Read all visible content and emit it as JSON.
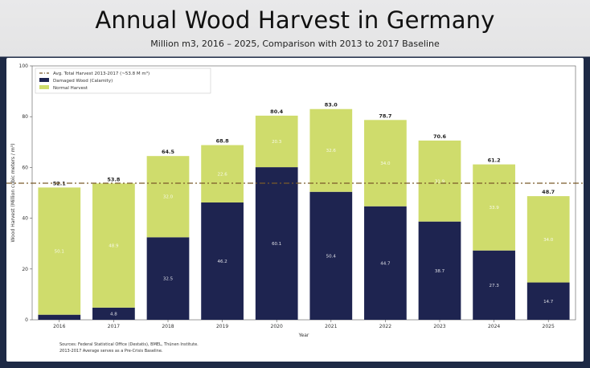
{
  "title": "Annual Wood Harvest in Germany",
  "subtitle": "Million m3, 2016 – 2025, Comparison with 2013 to 2017 Baseline",
  "colors": {
    "damaged": "#1e2450",
    "normal": "#cfdc6c",
    "baseline": "#7a5a2a"
  },
  "chart_data": {
    "type": "bar",
    "stacked": true,
    "categories": [
      "2016",
      "2017",
      "2018",
      "2019",
      "2020",
      "2021",
      "2022",
      "2023",
      "2024",
      "2025"
    ],
    "series": [
      {
        "name": "Damaged Wood (Calamity)",
        "values": [
          2.0,
          4.8,
          32.5,
          46.2,
          60.1,
          50.4,
          44.7,
          38.7,
          27.3,
          14.7
        ]
      },
      {
        "name": "Normal Harvest",
        "values": [
          50.1,
          48.9,
          32.0,
          22.6,
          20.3,
          32.6,
          34.0,
          31.9,
          33.9,
          34.0
        ]
      }
    ],
    "totals": [
      "52.1",
      "53.8",
      "64.5",
      "68.8",
      "80.4",
      "83.0",
      "78.7",
      "70.6",
      "61.2",
      "48.7"
    ],
    "inner_labels": {
      "damaged": [
        "",
        "4.8",
        "32.5",
        "46.2",
        "60.1",
        "50.4",
        "44.7",
        "38.7",
        "27.3",
        "14.7"
      ],
      "normal": [
        "50.1",
        "48.9",
        "32.0",
        "22.6",
        "20.3",
        "32.6",
        "34.0",
        "31.9",
        "33.9",
        "34.0"
      ]
    },
    "baseline": {
      "label": "Avg. Total Harvest 2013-2017 (~53.8 M m³)",
      "value": 53.8
    },
    "legend": [
      "Avg. Total Harvest 2013-2017 (~53.8 M m³)",
      "Damaged Wood (Calamity)",
      "Normal Harvest"
    ],
    "legend_position": "top-left",
    "xlabel": "Year",
    "ylabel": "Wood Harvest (Million cubic meters / m³)",
    "ylim": [
      0,
      100
    ],
    "yticks": [
      "0",
      "20",
      "40",
      "60",
      "80",
      "100"
    ],
    "grid": false
  },
  "sources": {
    "line1": "Sources: Federal Statistical Office (Destatis), BMEL, Thünen Institute.",
    "line2": "2013-2017 Average serves as a Pre-Crisis Baseline."
  }
}
